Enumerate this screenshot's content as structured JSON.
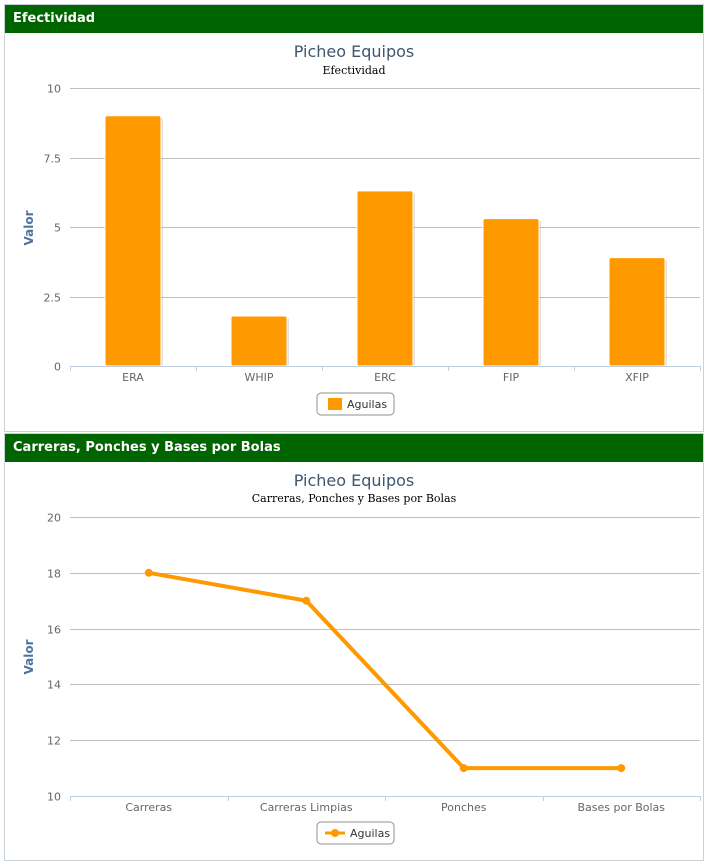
{
  "panels": [
    {
      "header": "Efectividad"
    },
    {
      "header": "Carreras, Ponches y Bases por Bolas"
    }
  ],
  "colors": {
    "header_bg": "#006400",
    "series": "#ff9900",
    "grid": "#c0c0c0",
    "title": "#3e576f",
    "axis_label": "#4d759e"
  },
  "chart_data": [
    {
      "type": "bar",
      "title": "Picheo Equipos",
      "subtitle": "Efectividad",
      "ylabel": "Valor",
      "xlabel": "",
      "categories": [
        "ERA",
        "WHIP",
        "ERC",
        "FIP",
        "XFIP"
      ],
      "series": [
        {
          "name": "Aguilas",
          "values": [
            9.0,
            1.8,
            6.3,
            5.3,
            3.9
          ]
        }
      ],
      "ylim": [
        0,
        10
      ],
      "yticks": [
        "0",
        "2.5",
        "5",
        "7.5",
        "10"
      ],
      "ytick_values": [
        0,
        2.5,
        5,
        7.5,
        10
      ],
      "grid": true,
      "legend": "bottom-center"
    },
    {
      "type": "line",
      "title": "Picheo Equipos",
      "subtitle": "Carreras, Ponches y Bases por Bolas",
      "ylabel": "Valor",
      "xlabel": "",
      "categories": [
        "Carreras",
        "Carreras Limpias",
        "Ponches",
        "Bases por Bolas"
      ],
      "series": [
        {
          "name": "Aguilas",
          "values": [
            18,
            17,
            11,
            11
          ]
        }
      ],
      "ylim": [
        10,
        20
      ],
      "yticks": [
        "10",
        "12",
        "14",
        "16",
        "18",
        "20"
      ],
      "ytick_values": [
        10,
        12,
        14,
        16,
        18,
        20
      ],
      "grid": true,
      "legend": "bottom-center"
    }
  ]
}
